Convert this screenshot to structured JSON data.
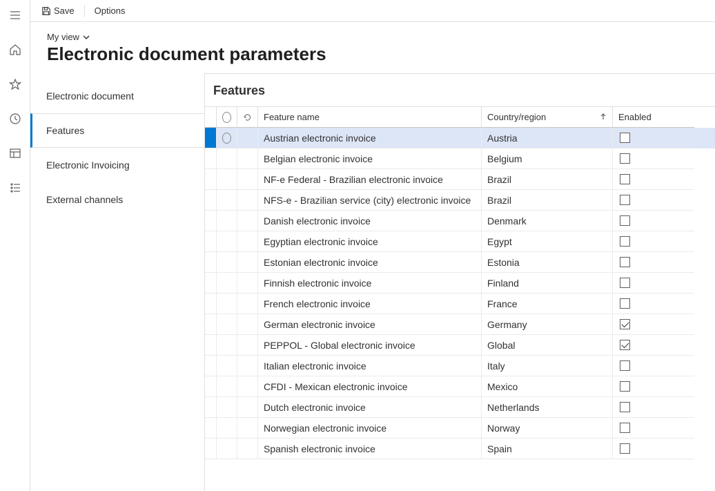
{
  "toolbar": {
    "save_label": "Save",
    "options_label": "Options"
  },
  "header": {
    "view_label": "My view",
    "page_title": "Electronic document parameters"
  },
  "sidenav": {
    "items": [
      {
        "label": "Electronic document",
        "active": false
      },
      {
        "label": "Features",
        "active": true
      },
      {
        "label": "Electronic Invoicing",
        "active": false
      },
      {
        "label": "External channels",
        "active": false
      }
    ]
  },
  "detail": {
    "title": "Features",
    "columns": {
      "feature_name": "Feature name",
      "country_region": "Country/region",
      "enabled": "Enabled"
    },
    "sort_column": "country_region",
    "sort_direction": "asc",
    "rows": [
      {
        "feature": "Austrian electronic invoice",
        "country": "Austria",
        "enabled": false,
        "selected": true
      },
      {
        "feature": "Belgian electronic invoice",
        "country": "Belgium",
        "enabled": false,
        "selected": false
      },
      {
        "feature": "NF-e  Federal - Brazilian electronic invoice",
        "country": "Brazil",
        "enabled": false,
        "selected": false
      },
      {
        "feature": "NFS-e - Brazilian service (city) electronic invoice",
        "country": "Brazil",
        "enabled": false,
        "selected": false
      },
      {
        "feature": "Danish electronic invoice",
        "country": "Denmark",
        "enabled": false,
        "selected": false
      },
      {
        "feature": "Egyptian electronic invoice",
        "country": "Egypt",
        "enabled": false,
        "selected": false
      },
      {
        "feature": "Estonian electronic invoice",
        "country": "Estonia",
        "enabled": false,
        "selected": false
      },
      {
        "feature": "Finnish electronic invoice",
        "country": "Finland",
        "enabled": false,
        "selected": false
      },
      {
        "feature": "French electronic invoice",
        "country": "France",
        "enabled": false,
        "selected": false
      },
      {
        "feature": "German electronic invoice",
        "country": "Germany",
        "enabled": true,
        "selected": false
      },
      {
        "feature": "PEPPOL - Global electronic invoice",
        "country": "Global",
        "enabled": true,
        "selected": false
      },
      {
        "feature": "Italian electronic invoice",
        "country": "Italy",
        "enabled": false,
        "selected": false
      },
      {
        "feature": "CFDI - Mexican electronic invoice",
        "country": "Mexico",
        "enabled": false,
        "selected": false
      },
      {
        "feature": "Dutch electronic invoice",
        "country": "Netherlands",
        "enabled": false,
        "selected": false
      },
      {
        "feature": "Norwegian electronic invoice",
        "country": "Norway",
        "enabled": false,
        "selected": false
      },
      {
        "feature": "Spanish electronic invoice",
        "country": "Spain",
        "enabled": false,
        "selected": false
      }
    ]
  }
}
